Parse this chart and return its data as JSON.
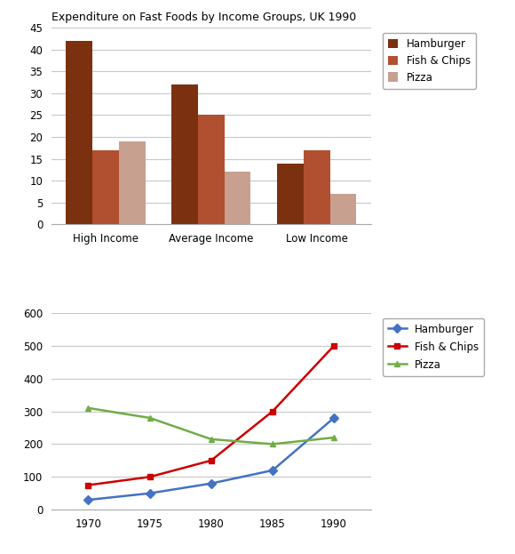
{
  "title": "Expenditure on Fast Foods by Income Groups, UK 1990",
  "bar_categories": [
    "High Income",
    "Average Income",
    "Low Income"
  ],
  "bar_series": {
    "Hamburger": [
      42,
      32,
      14
    ],
    "Fish & Chips": [
      17,
      25,
      17
    ],
    "Pizza": [
      19,
      12,
      7
    ]
  },
  "bar_colors": {
    "Hamburger": "#7B3010",
    "Fish & Chips": "#B05030",
    "Pizza": "#C8A090"
  },
  "bar_ylim": [
    0,
    45
  ],
  "bar_yticks": [
    0,
    5,
    10,
    15,
    20,
    25,
    30,
    35,
    40,
    45
  ],
  "line_years": [
    1970,
    1975,
    1980,
    1985,
    1990
  ],
  "line_series": {
    "Hamburger": [
      30,
      50,
      80,
      120,
      280
    ],
    "Fish & Chips": [
      75,
      100,
      150,
      300,
      500
    ],
    "Pizza": [
      310,
      280,
      215,
      200,
      220
    ]
  },
  "line_colors": {
    "Hamburger": "#4472C4",
    "Fish & Chips": "#CC0000",
    "Pizza": "#70AD47"
  },
  "line_markers": {
    "Hamburger": "D",
    "Fish & Chips": "s",
    "Pizza": "^"
  },
  "line_ylim": [
    0,
    600
  ],
  "line_yticks": [
    0,
    100,
    200,
    300,
    400,
    500,
    600
  ],
  "background_color": "#FFFFFF",
  "grid_color": "#C8C8C8"
}
